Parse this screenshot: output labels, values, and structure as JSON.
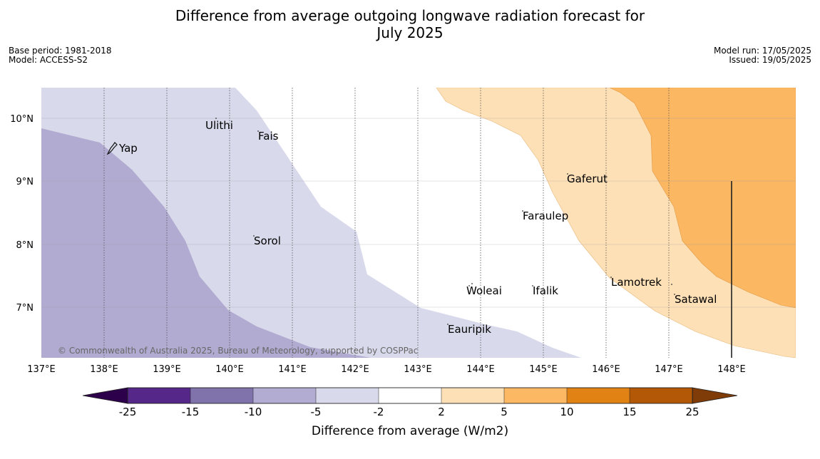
{
  "title": {
    "line1": "Difference from average outgoing longwave radiation forecast for",
    "line2": "July 2025"
  },
  "meta_left": {
    "base_period": "Base period: 1981-2018",
    "model": "Model: ACCESS-S2"
  },
  "meta_right": {
    "model_run": "Model run: 17/05/2025",
    "issued": "Issued: 19/05/2025"
  },
  "map": {
    "lon_ticks": [
      "137°E",
      "138°E",
      "139°E",
      "140°E",
      "141°E",
      "142°E",
      "143°E",
      "144°E",
      "145°E",
      "146°E",
      "147°E",
      "148°E"
    ],
    "lat_ticks": [
      "10°N",
      "9°N",
      "8°N",
      "7°N"
    ],
    "places": [
      {
        "name": "Yap"
      },
      {
        "name": "Ulithi"
      },
      {
        "name": "Fais"
      },
      {
        "name": "Gaferut"
      },
      {
        "name": "Faraulep"
      },
      {
        "name": "Sorol"
      },
      {
        "name": "Lamotrek"
      },
      {
        "name": "Woleai"
      },
      {
        "name": "Ifalik"
      },
      {
        "name": "Satawal"
      },
      {
        "name": "Eauripik"
      }
    ],
    "credit": "© Commonwealth of Australia 2025, Bureau of Meteorology, supported by COSPPac"
  },
  "colorbar": {
    "ticks": [
      "-25",
      "-15",
      "-10",
      "-5",
      "-2",
      "2",
      "5",
      "10",
      "15",
      "25"
    ],
    "colors": [
      "#542788",
      "#8073ac",
      "#b2abd2",
      "#d8daeb",
      "#ffffff",
      "#fee0b6",
      "#fdb863",
      "#e08214",
      "#b35806"
    ],
    "under_color": "#2d004b",
    "over_color": "#7f3b08",
    "label": "Difference from average (W/m2)"
  }
}
